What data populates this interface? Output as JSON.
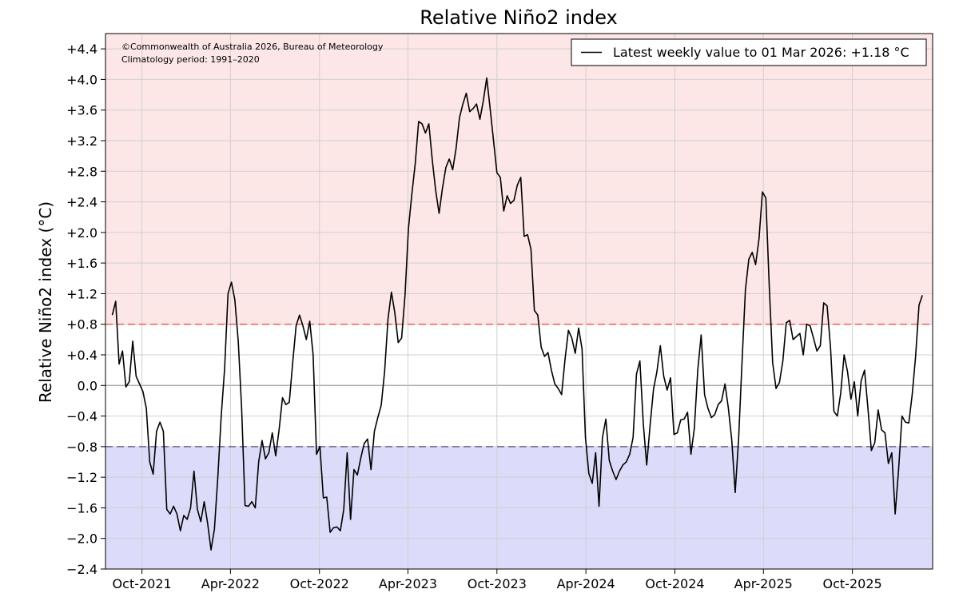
{
  "chart_data": {
    "type": "line",
    "title": "Relative Niño2 index",
    "ylabel": "Relative Niño2 index (°C)",
    "xlabel": "",
    "credit": "©Commonwealth of Australia 2026, Bureau of Meteorology",
    "climatology": "Climatology period: 1991–2020",
    "legend_label": "Latest weekly value to 01 Mar 2026: +1.18 °C",
    "legend_position": "top-right",
    "grid": true,
    "ylim": [
      -2.4,
      4.6
    ],
    "xlim": [
      "2021-07-18",
      "2026-03-15"
    ],
    "yticks": [
      -2.4,
      -2.0,
      -1.6,
      -1.2,
      -0.8,
      -0.4,
      0.0,
      0.4,
      0.8,
      1.2,
      1.6,
      2.0,
      2.4,
      2.8,
      3.2,
      3.6,
      4.0,
      4.4
    ],
    "ytick_labels": [
      "−2.4",
      "−2.0",
      "−1.6",
      "−1.2",
      "−0.8",
      "−0.4",
      "0.0",
      "+0.4",
      "+0.8",
      "+1.2",
      "+1.6",
      "+2.0",
      "+2.4",
      "+2.8",
      "+3.2",
      "+3.6",
      "+4.0",
      "+4.4"
    ],
    "xticks": [
      {
        "date": "2021-10-01",
        "label": "Oct-2021"
      },
      {
        "date": "2022-04-01",
        "label": "Apr-2022"
      },
      {
        "date": "2022-10-01",
        "label": "Oct-2022"
      },
      {
        "date": "2023-04-01",
        "label": "Apr-2023"
      },
      {
        "date": "2023-10-01",
        "label": "Oct-2023"
      },
      {
        "date": "2024-04-01",
        "label": "Apr-2024"
      },
      {
        "date": "2024-10-01",
        "label": "Oct-2024"
      },
      {
        "date": "2025-04-01",
        "label": "Apr-2025"
      },
      {
        "date": "2025-10-01",
        "label": "Oct-2025"
      }
    ],
    "thresholds": [
      {
        "value": 0.8,
        "color": "#e8474a"
      },
      {
        "value": -0.8,
        "color": "#4f4f7e"
      }
    ],
    "bands": [
      {
        "from": 0.8,
        "to": 4.6,
        "color": "#fde6e6"
      },
      {
        "from": -2.4,
        "to": -0.8,
        "color": "#dcdcfa"
      }
    ],
    "colors": {
      "line": "#000000",
      "grid": "#d0d0d0",
      "zero": "#a0a0a0"
    },
    "series": [
      {
        "start": "2021-08-01",
        "interval_days": 7,
        "values": [
          0.92,
          1.1,
          0.28,
          0.45,
          -0.02,
          0.05,
          0.58,
          0.12,
          0.02,
          -0.08,
          -0.3,
          -1.0,
          -1.16,
          -0.6,
          -0.48,
          -0.6,
          -1.62,
          -1.68,
          -1.58,
          -1.68,
          -1.9,
          -1.7,
          -1.75,
          -1.6,
          -1.12,
          -1.62,
          -1.78,
          -1.52,
          -1.8,
          -2.15,
          -1.88,
          -1.2,
          -0.4,
          0.22,
          1.2,
          1.35,
          1.12,
          0.58,
          -0.3,
          -1.57,
          -1.58,
          -1.52,
          -1.6,
          -1.0,
          -0.72,
          -0.96,
          -0.88,
          -0.62,
          -0.92,
          -0.58,
          -0.16,
          -0.25,
          -0.22,
          0.3,
          0.78,
          0.92,
          0.78,
          0.6,
          0.84,
          0.4,
          -0.9,
          -0.8,
          -1.47,
          -1.46,
          -1.92,
          -1.86,
          -1.85,
          -1.9,
          -1.62,
          -0.88,
          -1.75,
          -1.1,
          -1.17,
          -0.95,
          -0.76,
          -0.7,
          -1.1,
          -0.6,
          -0.42,
          -0.26,
          0.18,
          0.87,
          1.22,
          0.95,
          0.56,
          0.62,
          1.18,
          2.05,
          2.5,
          2.9,
          3.45,
          3.42,
          3.3,
          3.42,
          2.95,
          2.55,
          2.25,
          2.58,
          2.85,
          2.96,
          2.82,
          3.1,
          3.5,
          3.68,
          3.82,
          3.58,
          3.62,
          3.68,
          3.48,
          3.72,
          4.02,
          3.62,
          3.2,
          2.78,
          2.72,
          2.28,
          2.48,
          2.38,
          2.42,
          2.62,
          2.72,
          1.95,
          1.97,
          1.78,
          0.98,
          0.92,
          0.5,
          0.38,
          0.43,
          0.2,
          0.02,
          -0.04,
          -0.12,
          0.34,
          0.72,
          0.62,
          0.42,
          0.75,
          0.48,
          -0.68,
          -1.15,
          -1.28,
          -0.88,
          -1.58,
          -0.68,
          -0.44,
          -0.98,
          -1.12,
          -1.23,
          -1.12,
          -1.04,
          -1.0,
          -0.9,
          -0.68,
          0.15,
          0.32,
          -0.5,
          -1.04,
          -0.52,
          -0.05,
          0.18,
          0.52,
          0.12,
          -0.06,
          0.1,
          -0.64,
          -0.62,
          -0.45,
          -0.44,
          -0.35,
          -0.9,
          -0.56,
          0.2,
          0.66,
          -0.12,
          -0.3,
          -0.42,
          -0.38,
          -0.25,
          -0.2,
          0.02,
          -0.3,
          -0.72,
          -1.4,
          -0.7,
          0.3,
          1.25,
          1.65,
          1.74,
          1.58,
          1.92,
          2.53,
          2.45,
          1.3,
          0.3,
          -0.04,
          0.04,
          0.32,
          0.82,
          0.85,
          0.6,
          0.64,
          0.68,
          0.4,
          0.8,
          0.78,
          0.62,
          0.45,
          0.52,
          1.08,
          1.04,
          0.5,
          -0.34,
          -0.4,
          -0.1,
          0.4,
          0.18,
          -0.18,
          0.05,
          -0.4,
          0.06,
          0.2,
          -0.3,
          -0.85,
          -0.75,
          -0.32,
          -0.58,
          -0.62,
          -1.02,
          -0.88,
          -1.68,
          -1.1,
          -0.4,
          -0.48,
          -0.49,
          -0.12,
          0.38,
          1.05,
          1.18
        ]
      }
    ]
  }
}
